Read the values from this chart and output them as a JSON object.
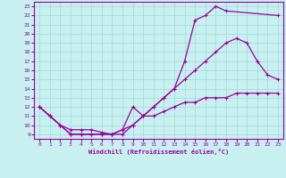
{
  "xlabel": "Windchill (Refroidissement éolien,°C)",
  "bg_color": "#c8f0f0",
  "line_color": "#990099",
  "grid_color": "#a0d8d8",
  "xlim": [
    -0.5,
    23.5
  ],
  "ylim": [
    8.5,
    23.5
  ],
  "xticks": [
    0,
    1,
    2,
    3,
    4,
    5,
    6,
    7,
    8,
    9,
    10,
    11,
    12,
    13,
    14,
    15,
    16,
    17,
    18,
    19,
    20,
    21,
    22,
    23
  ],
  "yticks": [
    9,
    10,
    11,
    12,
    13,
    14,
    15,
    16,
    17,
    18,
    19,
    20,
    21,
    22,
    23
  ],
  "line1_x": [
    0,
    1,
    2,
    3,
    4,
    5,
    6,
    7,
    8,
    9,
    10,
    11,
    12,
    13,
    14,
    15,
    16,
    17,
    18,
    23
  ],
  "line1_y": [
    12,
    11,
    10,
    9,
    9,
    9,
    9,
    9,
    9,
    10,
    11,
    12,
    13,
    14,
    17,
    21.5,
    22,
    23,
    22.5,
    22
  ],
  "line2_x": [
    0,
    1,
    2,
    3,
    4,
    5,
    6,
    7,
    8,
    9,
    10,
    11,
    12,
    13,
    14,
    15,
    16,
    17,
    18,
    19,
    20,
    21,
    22,
    23
  ],
  "line2_y": [
    12,
    11,
    10,
    9,
    9,
    9,
    9,
    9,
    9.5,
    10,
    11,
    12,
    13,
    14,
    15,
    16,
    17,
    18,
    19,
    19.5,
    19,
    17,
    15.5,
    15
  ],
  "line3_x": [
    0,
    1,
    2,
    3,
    4,
    5,
    6,
    7,
    8,
    9,
    10,
    11,
    12,
    13,
    14,
    15,
    16,
    17,
    18,
    19,
    20,
    21,
    22,
    23
  ],
  "line3_y": [
    12,
    11,
    10,
    9.5,
    9.5,
    9.5,
    9.2,
    9,
    9.5,
    12,
    11,
    11,
    11.5,
    12,
    12.5,
    12.5,
    13,
    13,
    13,
    13.5,
    13.5,
    13.5,
    13.5,
    13.5
  ]
}
